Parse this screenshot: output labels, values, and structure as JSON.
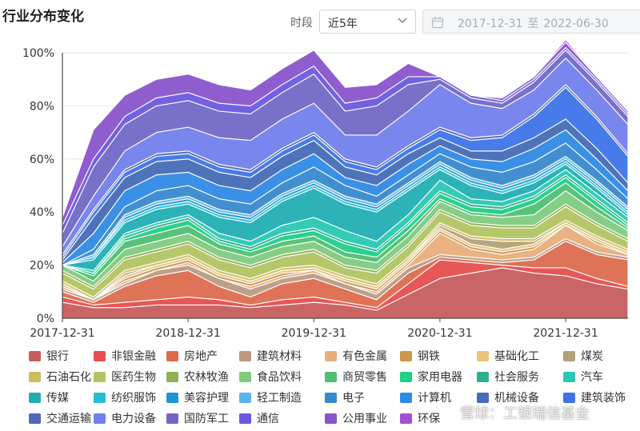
{
  "header": {
    "title": "行业分布变化",
    "period_label": "时段",
    "period_value": "近5年",
    "date_start": "2017-12-31",
    "date_sep": "至",
    "date_end": "2022-06-30"
  },
  "watermark": "雪球：工银瑞信基金",
  "chart_data": {
    "type": "area",
    "stacked": true,
    "x": [
      "2017-12-31",
      "2018-03-31",
      "2018-06-30",
      "2018-09-30",
      "2018-12-31",
      "2019-03-31",
      "2019-06-30",
      "2019-09-30",
      "2019-12-31",
      "2020-03-31",
      "2020-06-30",
      "2020-09-30",
      "2020-12-31",
      "2021-03-31",
      "2021-06-30",
      "2021-09-30",
      "2021-12-31",
      "2022-03-31",
      "2022-06-30"
    ],
    "x_ticks": [
      "2017-12-31",
      "2018-12-31",
      "2019-12-31",
      "2020-12-31",
      "2021-12-31"
    ],
    "y_ticks": [
      "0%",
      "20%",
      "40%",
      "60%",
      "80%",
      "100%"
    ],
    "ylim": [
      0,
      100
    ],
    "grid": true,
    "legend_position": "bottom",
    "series": [
      {
        "name": "银行",
        "color": "#c65d5d",
        "values": [
          6,
          4,
          4,
          5,
          5,
          5,
          4,
          5,
          6,
          5,
          3,
          9,
          15,
          17,
          19,
          17,
          16,
          13,
          11
        ]
      },
      {
        "name": "非银金融",
        "color": "#e64e4e",
        "values": [
          2,
          1,
          2,
          2,
          3,
          2,
          1,
          2,
          2,
          1,
          1,
          4,
          7,
          4,
          1,
          2,
          3,
          2,
          1
        ]
      },
      {
        "name": "房地产",
        "color": "#dc6b4e",
        "values": [
          2,
          1,
          6,
          9,
          10,
          5,
          3,
          6,
          7,
          5,
          3,
          4,
          1,
          1,
          1,
          3,
          10,
          9,
          10
        ]
      },
      {
        "name": "建筑材料",
        "color": "#bb9b84",
        "values": [
          1,
          1,
          1,
          2,
          2,
          3,
          3,
          2,
          2,
          2,
          2,
          2,
          1,
          1,
          1,
          1,
          1,
          1,
          1
        ]
      },
      {
        "name": "有色金属",
        "color": "#e9ad7b",
        "values": [
          1,
          0,
          1,
          0,
          1,
          0,
          1,
          1,
          1,
          0,
          1,
          1,
          8,
          3,
          2,
          3,
          5,
          3,
          1
        ]
      },
      {
        "name": "钢铁",
        "color": "#cb964c",
        "values": [
          0,
          0,
          1,
          1,
          1,
          1,
          1,
          1,
          0,
          1,
          1,
          1,
          1,
          1,
          1,
          1,
          0,
          1,
          0
        ]
      },
      {
        "name": "基础化工",
        "color": "#e6c57a",
        "values": [
          1,
          0,
          1,
          1,
          1,
          1,
          1,
          1,
          1,
          1,
          1,
          1,
          1,
          1,
          1,
          1,
          1,
          1,
          1
        ]
      },
      {
        "name": "煤炭",
        "color": "#b3a177",
        "values": [
          0,
          0,
          1,
          0,
          0,
          0,
          0,
          0,
          0,
          0,
          0,
          0,
          1,
          2,
          3,
          1,
          0,
          0,
          0
        ]
      },
      {
        "name": "石油石化",
        "color": "#cdbc60",
        "values": [
          1,
          1,
          1,
          1,
          1,
          1,
          1,
          1,
          1,
          1,
          1,
          1,
          1,
          1,
          1,
          1,
          1,
          1,
          1
        ]
      },
      {
        "name": "医药生物",
        "color": "#b2c462",
        "values": [
          3,
          3,
          4,
          4,
          4,
          4,
          4,
          4,
          5,
          3,
          4,
          4,
          4,
          4,
          4,
          4,
          5,
          4,
          3
        ]
      },
      {
        "name": "农林牧渔",
        "color": "#90b157",
        "values": [
          1,
          1,
          1,
          1,
          1,
          1,
          1,
          1,
          1,
          1,
          1,
          1,
          1,
          1,
          1,
          1,
          1,
          1,
          1
        ]
      },
      {
        "name": "食品饮料",
        "color": "#7fcb7f",
        "values": [
          2,
          2,
          3,
          3,
          3,
          3,
          3,
          3,
          3,
          3,
          3,
          3,
          3,
          3,
          3,
          4,
          5,
          4,
          3
        ]
      },
      {
        "name": "商贸零售",
        "color": "#4fbf72",
        "values": [
          0,
          2,
          3,
          3,
          3,
          2,
          2,
          2,
          2,
          2,
          2,
          2,
          1,
          1,
          1,
          4,
          3,
          2,
          1
        ]
      },
      {
        "name": "家用电器",
        "color": "#1ecf85",
        "values": [
          0,
          1,
          1,
          2,
          2,
          1,
          1,
          2,
          2,
          3,
          2,
          2,
          2,
          2,
          2,
          2,
          2,
          2,
          1
        ]
      },
      {
        "name": "社会服务",
        "color": "#2fae8e",
        "values": [
          0,
          0,
          1,
          1,
          1,
          1,
          1,
          1,
          1,
          1,
          1,
          1,
          1,
          1,
          1,
          1,
          1,
          1,
          1
        ]
      },
      {
        "name": "汽车",
        "color": "#28c8b1",
        "values": [
          0,
          1,
          1,
          1,
          1,
          2,
          2,
          3,
          4,
          4,
          3,
          3,
          4,
          2,
          2,
          2,
          2,
          2,
          2
        ]
      },
      {
        "name": "传媒",
        "color": "#21aeb3",
        "values": [
          0,
          4,
          4,
          5,
          4,
          6,
          7,
          9,
          11,
          10,
          11,
          9,
          4,
          5,
          3,
          3,
          2,
          2,
          1
        ]
      },
      {
        "name": "纺织服饰",
        "color": "#24bfd7",
        "values": [
          0,
          1,
          1,
          1,
          1,
          1,
          1,
          1,
          1,
          1,
          1,
          1,
          1,
          1,
          1,
          1,
          1,
          1,
          1
        ]
      },
      {
        "name": "美容护理",
        "color": "#1f96d4",
        "values": [
          0,
          0,
          1,
          1,
          1,
          1,
          1,
          1,
          1,
          1,
          1,
          1,
          1,
          1,
          1,
          1,
          1,
          1,
          1
        ]
      },
      {
        "name": "轻工制造",
        "color": "#5cb3ea",
        "values": [
          0,
          1,
          1,
          1,
          1,
          1,
          1,
          1,
          1,
          1,
          1,
          1,
          1,
          1,
          1,
          1,
          1,
          1,
          1
        ]
      },
      {
        "name": "电子",
        "color": "#3789cf",
        "values": [
          0,
          2,
          3,
          4,
          4,
          4,
          4,
          4,
          5,
          4,
          3,
          3,
          3,
          4,
          5,
          5,
          5,
          4,
          3
        ]
      },
      {
        "name": "计算机",
        "color": "#2f89e6",
        "values": [
          1,
          6,
          6,
          6,
          5,
          5,
          5,
          5,
          5,
          3,
          4,
          4,
          3,
          3,
          4,
          5,
          5,
          4,
          3
        ]
      },
      {
        "name": "机械设备",
        "color": "#466bb7",
        "values": [
          1,
          6,
          5,
          5,
          5,
          5,
          5,
          5,
          5,
          4,
          4,
          4,
          3,
          3,
          4,
          4,
          4,
          4,
          3
        ]
      },
      {
        "name": "建筑装饰",
        "color": "#3c74e8",
        "values": [
          1,
          2,
          2,
          2,
          2,
          2,
          2,
          2,
          2,
          2,
          2,
          2,
          3,
          4,
          5,
          8,
          12,
          11,
          10
        ]
      },
      {
        "name": "交通运输",
        "color": "#5367b6",
        "values": [
          1,
          1,
          1,
          1,
          1,
          1,
          1,
          1,
          1,
          1,
          1,
          1,
          1,
          1,
          1,
          1,
          1,
          1,
          1
        ]
      },
      {
        "name": "电力设备",
        "color": "#7280ec",
        "values": [
          3,
          5,
          7,
          8,
          9,
          10,
          11,
          11,
          11,
          9,
          12,
          13,
          16,
          13,
          10,
          9,
          10,
          10,
          11
        ]
      },
      {
        "name": "国防军工",
        "color": "#7168c6",
        "values": [
          5,
          11,
          10,
          10,
          10,
          10,
          10,
          10,
          11,
          9,
          11,
          10,
          2,
          2,
          2,
          3,
          3,
          3,
          3
        ]
      },
      {
        "name": "通信",
        "color": "#6a58e0",
        "values": [
          3,
          3,
          3,
          3,
          3,
          3,
          3,
          3,
          3,
          3,
          3,
          3,
          1,
          1,
          1,
          1,
          1,
          1,
          1
        ]
      },
      {
        "name": "公用事业",
        "color": "#8a54cc",
        "values": [
          3,
          11,
          8,
          7,
          7,
          7,
          6,
          6,
          6,
          6,
          5,
          5,
          0,
          0,
          1,
          1,
          2,
          1,
          1
        ]
      },
      {
        "name": "环保",
        "color": "#a24fd2",
        "values": [
          0,
          0,
          0,
          0,
          0,
          0,
          0,
          0,
          0,
          0,
          0,
          0,
          0,
          0,
          0,
          0,
          1,
          0,
          0
        ]
      }
    ]
  }
}
